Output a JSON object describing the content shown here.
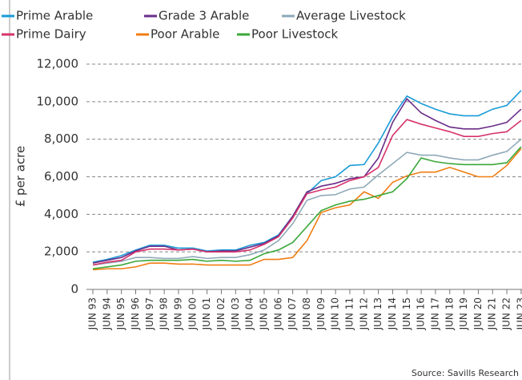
{
  "chart_data": {
    "type": "line",
    "y_label": "£ per acre",
    "source": "Source: Savills Research",
    "categories": [
      "JUN 93",
      "JUN 94",
      "JUN 95",
      "JUN 96",
      "JUN 97",
      "JUN 98",
      "JUN 99",
      "JUN 00",
      "JUN 01",
      "JUN 02",
      "JUN 03",
      "JUN 04",
      "JUN 05",
      "JUN 06",
      "JUN 07",
      "JUN 08",
      "JUN 09",
      "JUN 10",
      "JUN 11",
      "JUN 12",
      "JUN 13",
      "JUN 14",
      "JUN 15",
      "JUN 16",
      "JUN 17",
      "JUN 18",
      "JUN 19",
      "JUN 20",
      "JUN 21",
      "JUN 22",
      "JUN 23"
    ],
    "series": [
      {
        "name": "Prime Arable",
        "color": "#1a9bd7",
        "values": [
          1450,
          1600,
          1800,
          2100,
          2350,
          2350,
          2200,
          2200,
          2050,
          2100,
          2100,
          2350,
          2500,
          2900,
          3900,
          5100,
          5800,
          6000,
          6600,
          6650,
          7800,
          9200,
          10300,
          9900,
          9600,
          9350,
          9250,
          9250,
          9600,
          9800,
          10600
        ]
      },
      {
        "name": "Grade 3 Arable",
        "color": "#6b2d8a",
        "values": [
          1400,
          1550,
          1700,
          2050,
          2300,
          2300,
          2100,
          2150,
          2000,
          2050,
          2050,
          2250,
          2450,
          2850,
          3900,
          5200,
          5500,
          5650,
          5900,
          6000,
          7000,
          8900,
          10150,
          9400,
          9000,
          8650,
          8550,
          8550,
          8700,
          8900,
          9600
        ]
      },
      {
        "name": "Average Livestock",
        "color": "#8fa9b8",
        "values": [
          1300,
          1400,
          1500,
          1700,
          1700,
          1650,
          1650,
          1750,
          1650,
          1700,
          1700,
          1850,
          2100,
          2600,
          3500,
          4750,
          5000,
          5050,
          5350,
          5450,
          6100,
          6700,
          7300,
          7150,
          7150,
          7000,
          6900,
          6900,
          7150,
          7350,
          8000
        ]
      },
      {
        "name": "Prime Dairy",
        "color": "#d6336c",
        "values": [
          1300,
          1450,
          1550,
          2000,
          2150,
          2150,
          2100,
          2150,
          2000,
          2000,
          2000,
          2100,
          2400,
          2800,
          3800,
          5100,
          5300,
          5450,
          5800,
          6000,
          6500,
          8200,
          9050,
          8800,
          8600,
          8400,
          8150,
          8150,
          8300,
          8400,
          9000
        ]
      },
      {
        "name": "Poor Arable",
        "color": "#f07d12",
        "values": [
          1050,
          1100,
          1100,
          1200,
          1400,
          1400,
          1350,
          1350,
          1300,
          1300,
          1300,
          1300,
          1600,
          1600,
          1700,
          2600,
          4100,
          4350,
          4500,
          5200,
          4850,
          5700,
          6050,
          6250,
          6250,
          6500,
          6250,
          6000,
          6000,
          6600,
          7500
        ]
      },
      {
        "name": "Poor Livestock",
        "color": "#3aa83a",
        "values": [
          1100,
          1200,
          1300,
          1500,
          1550,
          1550,
          1550,
          1600,
          1500,
          1550,
          1500,
          1550,
          1900,
          2100,
          2500,
          3350,
          4200,
          4500,
          4700,
          4800,
          5000,
          5200,
          5900,
          7000,
          6800,
          6700,
          6650,
          6650,
          6650,
          6750,
          7600
        ]
      }
    ],
    "ylim": [
      0,
      12000
    ],
    "yticks": [
      0,
      {
        "value": 2000,
        "label": "2,000"
      },
      {
        "value": 4000,
        "label": "4,000"
      },
      {
        "value": 6000,
        "label": "6,000"
      },
      {
        "value": 8000,
        "label": "8,000"
      },
      {
        "value": 10000,
        "label": "10,000"
      },
      {
        "value": 12000,
        "label": "12,000"
      }
    ],
    "grid": true
  }
}
